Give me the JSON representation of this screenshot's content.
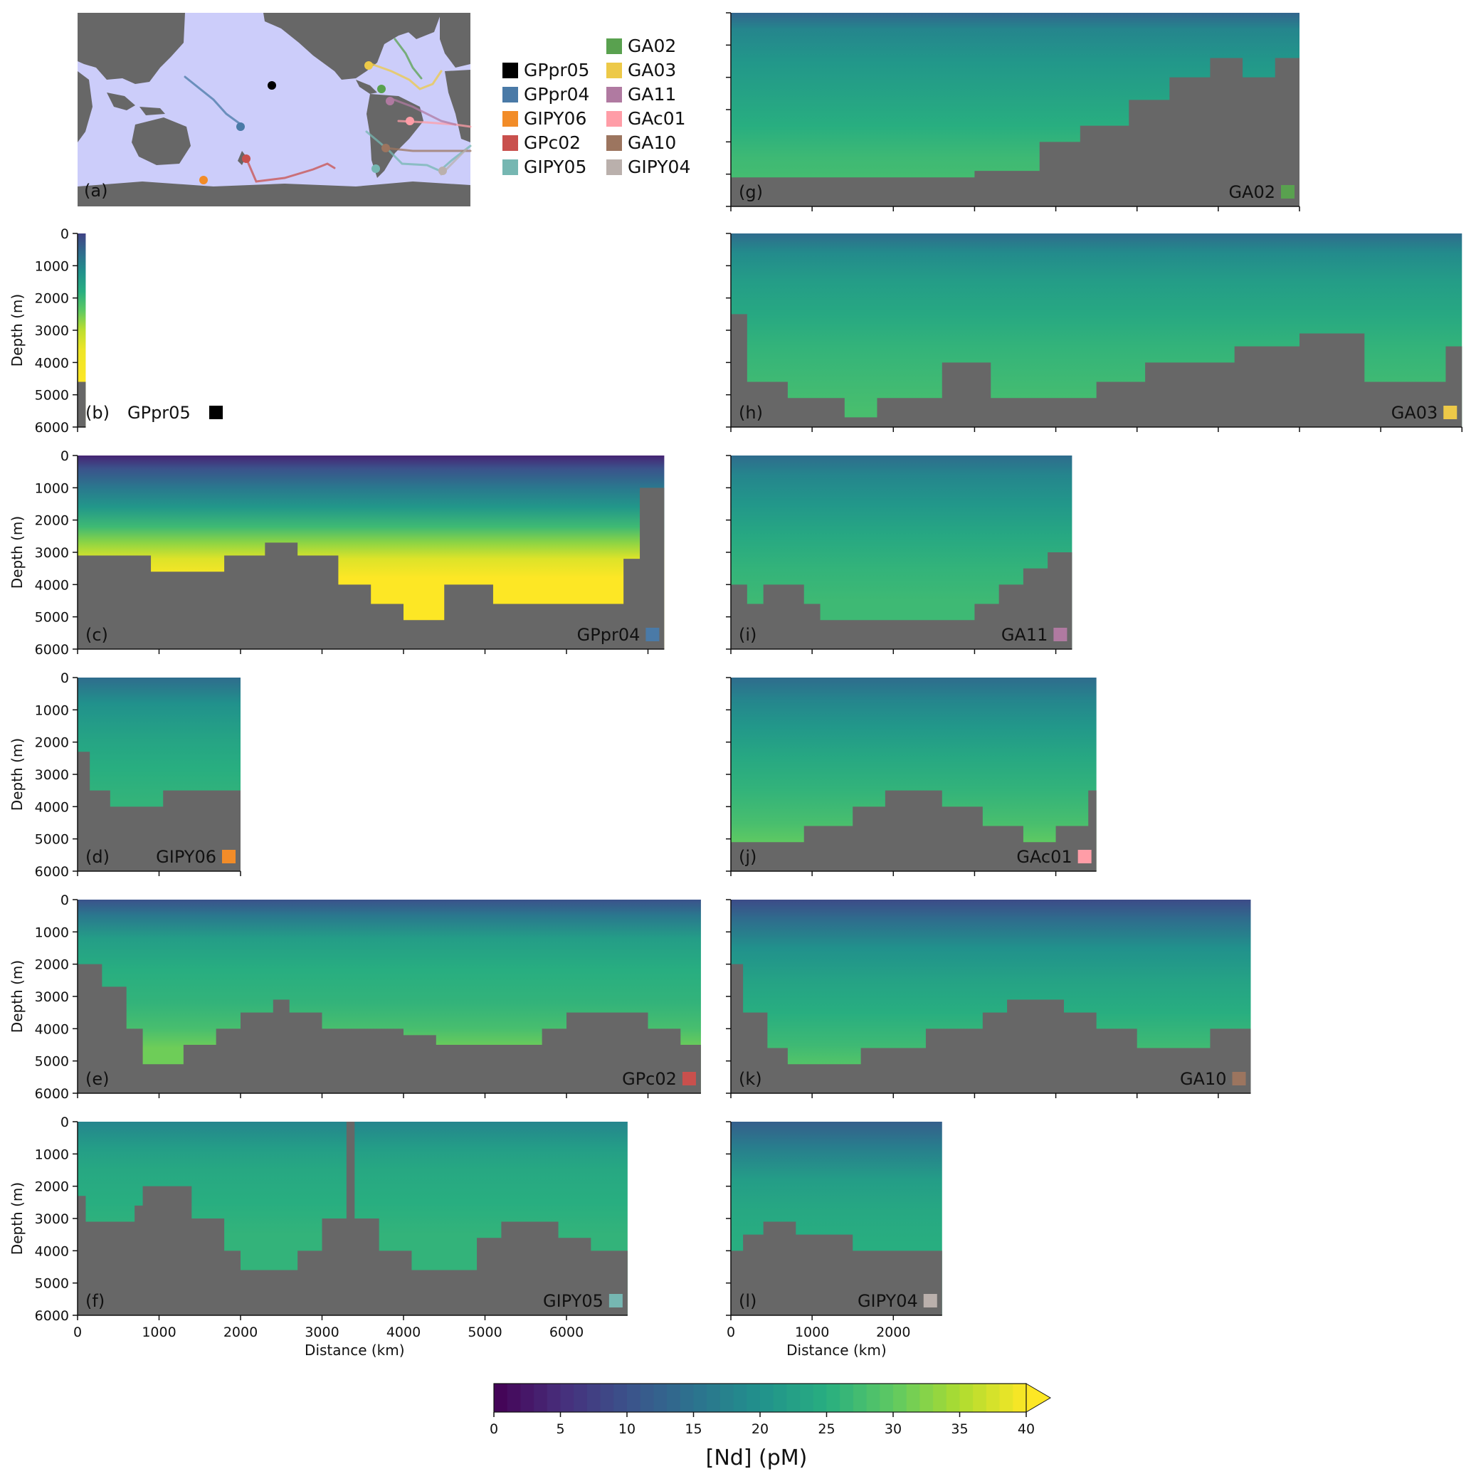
{
  "axis_labels": {
    "depth": "Depth (m)",
    "distance": "Distance (km)"
  },
  "depth_ticks": [
    "0",
    "1000",
    "2000",
    "3000",
    "4000",
    "5000",
    "6000"
  ],
  "distance_ticks_left": [
    "0",
    "1000",
    "2000",
    "3000",
    "4000",
    "5000",
    "6000"
  ],
  "distance_ticks_right": [
    "0",
    "1000",
    "2000"
  ],
  "map_panel": {
    "letter": "(a)"
  },
  "legend": [
    {
      "name": "GPpr05",
      "color": "#000000"
    },
    {
      "name": "GPpr04",
      "color": "#4a7aa7"
    },
    {
      "name": "GIPY06",
      "color": "#f28c28"
    },
    {
      "name": "GPc02",
      "color": "#c9504d"
    },
    {
      "name": "GIPY05",
      "color": "#76b7b2"
    },
    {
      "name": "GA02",
      "color": "#59a14f"
    },
    {
      "name": "GA03",
      "color": "#edc948"
    },
    {
      "name": "GA11",
      "color": "#b07aa1"
    },
    {
      "name": "GAc01",
      "color": "#ff9da7"
    },
    {
      "name": "GA10",
      "color": "#9c755f"
    },
    {
      "name": "GIPY04",
      "color": "#bab0ac"
    }
  ],
  "colorbar": {
    "label": "[Nd] (pM)",
    "ticks": [
      "0",
      "5",
      "10",
      "15",
      "20",
      "25",
      "30",
      "35",
      "40"
    ],
    "range": [
      0,
      40
    ],
    "extend": "max",
    "colormap": "viridis"
  },
  "chart_data": [
    {
      "panel": "b",
      "letter": "(b)",
      "name": "GPpr05",
      "color": "#000000",
      "type": "heatmap",
      "distance_km": 100,
      "ylim": [
        6000,
        0
      ],
      "profile": [
        [
          0,
          8
        ],
        [
          600,
          14
        ],
        [
          1200,
          20
        ],
        [
          1800,
          25
        ],
        [
          2400,
          30
        ],
        [
          3000,
          36
        ],
        [
          3600,
          39
        ],
        [
          4600,
          40
        ]
      ],
      "floor": [
        [
          0,
          4600
        ],
        [
          100,
          4600
        ]
      ]
    },
    {
      "panel": "c",
      "letter": "(c)",
      "name": "GPpr04",
      "color": "#4a7aa7",
      "type": "heatmap",
      "distance_km": 7200,
      "ylim": [
        6000,
        0
      ],
      "profile": [
        [
          0,
          4
        ],
        [
          400,
          10
        ],
        [
          1000,
          16
        ],
        [
          1600,
          21
        ],
        [
          2200,
          27
        ],
        [
          2700,
          33
        ],
        [
          3200,
          38
        ],
        [
          3800,
          40
        ],
        [
          4600,
          41
        ]
      ],
      "floor": [
        [
          0,
          3100
        ],
        [
          900,
          3600
        ],
        [
          1800,
          3100
        ],
        [
          2300,
          2700
        ],
        [
          2700,
          3100
        ],
        [
          3200,
          4000
        ],
        [
          3600,
          4600
        ],
        [
          4000,
          5100
        ],
        [
          4500,
          4000
        ],
        [
          5100,
          4600
        ],
        [
          6300,
          4600
        ],
        [
          6700,
          3200
        ],
        [
          6900,
          1000
        ],
        [
          7200,
          500
        ]
      ]
    },
    {
      "panel": "d",
      "letter": "(d)",
      "name": "GIPY06",
      "color": "#f28c28",
      "type": "heatmap",
      "distance_km": 2000,
      "ylim": [
        6000,
        0
      ],
      "profile": [
        [
          0,
          14
        ],
        [
          800,
          20
        ],
        [
          1800,
          23
        ],
        [
          2800,
          25
        ],
        [
          3800,
          26
        ]
      ],
      "floor": [
        [
          0,
          2300
        ],
        [
          150,
          3500
        ],
        [
          400,
          4000
        ],
        [
          1050,
          3500
        ],
        [
          2000,
          3500
        ]
      ]
    },
    {
      "panel": "e",
      "letter": "(e)",
      "name": "GPc02",
      "color": "#c9504d",
      "type": "heatmap",
      "distance_km": 7650,
      "ylim": [
        6000,
        0
      ],
      "profile": [
        [
          0,
          10
        ],
        [
          500,
          16
        ],
        [
          1200,
          22
        ],
        [
          2200,
          25
        ],
        [
          3200,
          26
        ],
        [
          4000,
          28
        ],
        [
          4600,
          31
        ]
      ],
      "floor": [
        [
          0,
          2000
        ],
        [
          300,
          2700
        ],
        [
          600,
          4000
        ],
        [
          800,
          5100
        ],
        [
          1300,
          4500
        ],
        [
          1700,
          4000
        ],
        [
          2000,
          3500
        ],
        [
          2400,
          3100
        ],
        [
          2600,
          3500
        ],
        [
          3000,
          4000
        ],
        [
          4000,
          4200
        ],
        [
          4400,
          4500
        ],
        [
          5700,
          4000
        ],
        [
          6000,
          3500
        ],
        [
          7000,
          4000
        ],
        [
          7400,
          4500
        ],
        [
          7650,
          4500
        ]
      ]
    },
    {
      "panel": "f",
      "letter": "(f)",
      "name": "GIPY05",
      "color": "#76b7b2",
      "type": "heatmap",
      "distance_km": 6750,
      "ylim": [
        6000,
        0
      ],
      "profile": [
        [
          0,
          18
        ],
        [
          800,
          22
        ],
        [
          1500,
          24
        ],
        [
          2500,
          25
        ],
        [
          3500,
          26
        ],
        [
          4500,
          26
        ]
      ],
      "floor": [
        [
          0,
          2300
        ],
        [
          100,
          3100
        ],
        [
          700,
          2600
        ],
        [
          800,
          2000
        ],
        [
          1100,
          2000
        ],
        [
          1400,
          3000
        ],
        [
          1800,
          4000
        ],
        [
          2000,
          4600
        ],
        [
          2700,
          4000
        ],
        [
          3000,
          3000
        ],
        [
          3300,
          0
        ],
        [
          3400,
          3000
        ],
        [
          3700,
          4000
        ],
        [
          4100,
          4600
        ],
        [
          4900,
          3600
        ],
        [
          5200,
          3100
        ],
        [
          5900,
          3600
        ],
        [
          6300,
          4000
        ],
        [
          6750,
          4600
        ]
      ]
    },
    {
      "panel": "g",
      "letter": "(g)",
      "name": "GA02",
      "color": "#59a14f",
      "type": "heatmap",
      "distance_km": 7000,
      "ylim": [
        6000,
        0
      ],
      "profile": [
        [
          0,
          13
        ],
        [
          500,
          18
        ],
        [
          1500,
          21
        ],
        [
          2500,
          23
        ],
        [
          3500,
          25
        ],
        [
          4500,
          27
        ],
        [
          5500,
          28
        ]
      ],
      "floor": [
        [
          0,
          5100
        ],
        [
          2500,
          5100
        ],
        [
          3000,
          4900
        ],
        [
          3800,
          4000
        ],
        [
          4300,
          3500
        ],
        [
          4900,
          2700
        ],
        [
          5400,
          2000
        ],
        [
          5900,
          1400
        ],
        [
          6300,
          2000
        ],
        [
          6700,
          1400
        ],
        [
          7000,
          300
        ]
      ]
    },
    {
      "panel": "h",
      "letter": "(h)",
      "name": "GA03",
      "color": "#edc948",
      "type": "heatmap",
      "distance_km": 9000,
      "ylim": [
        6000,
        0
      ],
      "profile": [
        [
          0,
          14
        ],
        [
          600,
          19
        ],
        [
          1500,
          22
        ],
        [
          2500,
          24
        ],
        [
          3500,
          26
        ],
        [
          4500,
          27
        ],
        [
          5500,
          28
        ]
      ],
      "floor": [
        [
          0,
          2500
        ],
        [
          200,
          4600
        ],
        [
          700,
          5100
        ],
        [
          1400,
          5700
        ],
        [
          1800,
          5100
        ],
        [
          2600,
          4000
        ],
        [
          3200,
          5100
        ],
        [
          4500,
          4600
        ],
        [
          5100,
          4000
        ],
        [
          6200,
          3500
        ],
        [
          7000,
          3100
        ],
        [
          7800,
          4600
        ],
        [
          8800,
          3500
        ],
        [
          9000,
          3100
        ]
      ]
    },
    {
      "panel": "i",
      "letter": "(i)",
      "name": "GA11",
      "color": "#b07aa1",
      "type": "heatmap",
      "distance_km": 4200,
      "ylim": [
        6000,
        0
      ],
      "profile": [
        [
          0,
          14
        ],
        [
          600,
          18
        ],
        [
          1500,
          21
        ],
        [
          2500,
          24
        ],
        [
          3500,
          26
        ],
        [
          4500,
          27
        ],
        [
          5100,
          27
        ]
      ],
      "floor": [
        [
          0,
          4000
        ],
        [
          200,
          4600
        ],
        [
          400,
          4000
        ],
        [
          900,
          4600
        ],
        [
          1100,
          5100
        ],
        [
          2800,
          5100
        ],
        [
          3000,
          4600
        ],
        [
          3300,
          4000
        ],
        [
          3600,
          3500
        ],
        [
          3900,
          3000
        ],
        [
          4200,
          2700
        ]
      ]
    },
    {
      "panel": "j",
      "letter": "(j)",
      "name": "GAc01",
      "color": "#ff9da7",
      "type": "heatmap",
      "distance_km": 4500,
      "ylim": [
        6000,
        0
      ],
      "profile": [
        [
          0,
          14
        ],
        [
          700,
          18
        ],
        [
          1500,
          21
        ],
        [
          2500,
          24
        ],
        [
          3500,
          26
        ],
        [
          4500,
          28
        ],
        [
          5100,
          30
        ]
      ],
      "floor": [
        [
          0,
          5100
        ],
        [
          900,
          4600
        ],
        [
          1500,
          4000
        ],
        [
          1900,
          3500
        ],
        [
          2200,
          3500
        ],
        [
          2600,
          4000
        ],
        [
          3100,
          4600
        ],
        [
          3600,
          5100
        ],
        [
          4000,
          4600
        ],
        [
          4400,
          3500
        ],
        [
          4500,
          3500
        ]
      ]
    },
    {
      "panel": "k",
      "letter": "(k)",
      "name": "GA10",
      "color": "#9c755f",
      "type": "heatmap",
      "distance_km": 6400,
      "ylim": [
        6000,
        0
      ],
      "profile": [
        [
          0,
          9
        ],
        [
          600,
          14
        ],
        [
          1500,
          20
        ],
        [
          2500,
          23
        ],
        [
          3500,
          25
        ],
        [
          4500,
          27
        ],
        [
          5100,
          29
        ]
      ],
      "floor": [
        [
          0,
          2000
        ],
        [
          150,
          3500
        ],
        [
          450,
          4600
        ],
        [
          700,
          5100
        ],
        [
          1600,
          4600
        ],
        [
          2400,
          4000
        ],
        [
          3100,
          3500
        ],
        [
          3400,
          3100
        ],
        [
          4100,
          3500
        ],
        [
          4500,
          4000
        ],
        [
          5000,
          4600
        ],
        [
          5900,
          4000
        ],
        [
          6400,
          3500
        ]
      ]
    },
    {
      "panel": "l",
      "letter": "(l)",
      "name": "GIPY04",
      "color": "#bab0ac",
      "type": "heatmap",
      "distance_km": 2600,
      "ylim": [
        6000,
        0
      ],
      "profile": [
        [
          0,
          12
        ],
        [
          800,
          17
        ],
        [
          1800,
          22
        ],
        [
          2800,
          24
        ],
        [
          3800,
          25
        ],
        [
          4600,
          25
        ]
      ],
      "floor": [
        [
          0,
          4000
        ],
        [
          150,
          3500
        ],
        [
          400,
          3100
        ],
        [
          800,
          3500
        ],
        [
          1500,
          4000
        ],
        [
          2600,
          4600
        ]
      ]
    }
  ]
}
